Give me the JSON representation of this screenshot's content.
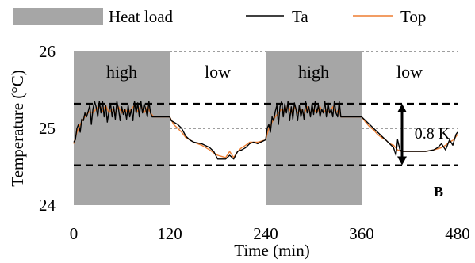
{
  "chart_data": {
    "type": "line",
    "panel_label": "B",
    "xlabel": "Time (min)",
    "ylabel": "Temperature (°C)",
    "xlim": [
      0,
      480
    ],
    "ylim": [
      24,
      26
    ],
    "x_ticks": [
      "0",
      "120",
      "240",
      "360",
      "480"
    ],
    "y_ticks": [
      "24",
      "25",
      "26"
    ],
    "legend": {
      "placement": "top",
      "entries": [
        {
          "label": "Heat load",
          "kind": "patch",
          "color": "#a6a6a6"
        },
        {
          "label": "Ta",
          "kind": "line",
          "color": "#000000"
        },
        {
          "label": "Top",
          "kind": "line",
          "color": "#ed7d31"
        }
      ]
    },
    "zones": [
      {
        "label": "high",
        "x_start": 0,
        "x_end": 120,
        "shaded": true
      },
      {
        "label": "low",
        "x_start": 120,
        "x_end": 240,
        "shaded": false
      },
      {
        "label": "high",
        "x_start": 240,
        "x_end": 360,
        "shaded": true
      },
      {
        "label": "low",
        "x_start": 360,
        "x_end": 480,
        "shaded": false
      }
    ],
    "reference_lines": [
      {
        "y": 25.32,
        "style": "dashed"
      },
      {
        "y": 24.52,
        "style": "dashed"
      }
    ],
    "range_annotation": {
      "label": "0.8 K",
      "x": 410,
      "y_low": 24.52,
      "y_high": 25.32
    },
    "series": [
      {
        "name": "Ta",
        "color": "#000000",
        "points": [
          [
            0,
            24.82
          ],
          [
            2,
            24.85
          ],
          [
            4,
            25.0
          ],
          [
            6,
            25.05
          ],
          [
            8,
            24.95
          ],
          [
            10,
            25.12
          ],
          [
            12,
            25.1
          ],
          [
            14,
            25.2
          ],
          [
            16,
            25.15
          ],
          [
            18,
            25.22
          ],
          [
            20,
            25.3
          ],
          [
            22,
            25.05
          ],
          [
            24,
            25.25
          ],
          [
            26,
            25.35
          ],
          [
            28,
            25.28
          ],
          [
            30,
            25.15
          ],
          [
            32,
            25.35
          ],
          [
            34,
            25.2
          ],
          [
            36,
            25.35
          ],
          [
            38,
            25.15
          ],
          [
            40,
            25.3
          ],
          [
            42,
            25.08
          ],
          [
            44,
            25.22
          ],
          [
            46,
            25.32
          ],
          [
            48,
            25.15
          ],
          [
            50,
            25.28
          ],
          [
            52,
            25.12
          ],
          [
            54,
            25.35
          ],
          [
            56,
            25.25
          ],
          [
            58,
            25.1
          ],
          [
            60,
            25.28
          ],
          [
            62,
            25.18
          ],
          [
            64,
            25.25
          ],
          [
            66,
            25.12
          ],
          [
            68,
            25.3
          ],
          [
            70,
            25.15
          ],
          [
            72,
            25.25
          ],
          [
            74,
            25.1
          ],
          [
            76,
            25.35
          ],
          [
            78,
            25.2
          ],
          [
            80,
            25.33
          ],
          [
            82,
            25.15
          ],
          [
            84,
            25.35
          ],
          [
            86,
            25.2
          ],
          [
            88,
            25.32
          ],
          [
            90,
            25.25
          ],
          [
            92,
            25.15
          ],
          [
            94,
            25.35
          ],
          [
            96,
            25.2
          ],
          [
            98,
            25.15
          ],
          [
            100,
            25.15
          ],
          [
            120,
            25.15
          ],
          [
            122,
            25.1
          ],
          [
            130,
            25.05
          ],
          [
            135,
            25.0
          ],
          [
            140,
            24.9
          ],
          [
            145,
            24.85
          ],
          [
            150,
            24.82
          ],
          [
            160,
            24.8
          ],
          [
            170,
            24.75
          ],
          [
            175,
            24.7
          ],
          [
            180,
            24.6
          ],
          [
            190,
            24.6
          ],
          [
            195,
            24.65
          ],
          [
            200,
            24.6
          ],
          [
            205,
            24.7
          ],
          [
            210,
            24.72
          ],
          [
            215,
            24.75
          ],
          [
            220,
            24.8
          ],
          [
            225,
            24.82
          ],
          [
            230,
            24.8
          ],
          [
            240,
            24.85
          ],
          [
            242,
            25.0
          ],
          [
            244,
            25.05
          ],
          [
            246,
            24.95
          ],
          [
            248,
            25.15
          ],
          [
            250,
            25.1
          ],
          [
            252,
            25.22
          ],
          [
            254,
            25.3
          ],
          [
            256,
            25.05
          ],
          [
            258,
            25.28
          ],
          [
            260,
            25.35
          ],
          [
            262,
            25.15
          ],
          [
            264,
            25.32
          ],
          [
            266,
            25.2
          ],
          [
            268,
            25.35
          ],
          [
            270,
            25.1
          ],
          [
            272,
            25.28
          ],
          [
            274,
            25.12
          ],
          [
            276,
            25.33
          ],
          [
            278,
            25.25
          ],
          [
            280,
            25.1
          ],
          [
            282,
            25.3
          ],
          [
            284,
            25.15
          ],
          [
            286,
            25.25
          ],
          [
            288,
            25.12
          ],
          [
            290,
            25.35
          ],
          [
            292,
            25.2
          ],
          [
            294,
            25.28
          ],
          [
            296,
            25.15
          ],
          [
            298,
            25.32
          ],
          [
            300,
            25.18
          ],
          [
            302,
            25.35
          ],
          [
            304,
            25.2
          ],
          [
            306,
            25.3
          ],
          [
            308,
            25.15
          ],
          [
            310,
            25.25
          ],
          [
            312,
            25.2
          ],
          [
            314,
            25.35
          ],
          [
            316,
            25.15
          ],
          [
            318,
            25.33
          ],
          [
            320,
            25.2
          ],
          [
            322,
            25.25
          ],
          [
            324,
            25.15
          ],
          [
            326,
            25.35
          ],
          [
            328,
            25.2
          ],
          [
            330,
            25.15
          ],
          [
            332,
            25.35
          ],
          [
            334,
            25.15
          ],
          [
            360,
            25.15
          ],
          [
            365,
            25.1
          ],
          [
            370,
            25.05
          ],
          [
            375,
            25.0
          ],
          [
            380,
            24.95
          ],
          [
            385,
            24.9
          ],
          [
            390,
            24.85
          ],
          [
            395,
            24.8
          ],
          [
            400,
            24.75
          ],
          [
            403,
            24.65
          ],
          [
            405,
            24.85
          ],
          [
            408,
            24.72
          ],
          [
            410,
            24.7
          ],
          [
            420,
            24.7
          ],
          [
            440,
            24.7
          ],
          [
            450,
            24.72
          ],
          [
            455,
            24.75
          ],
          [
            460,
            24.8
          ],
          [
            465,
            24.72
          ],
          [
            470,
            24.85
          ],
          [
            474,
            24.78
          ],
          [
            478,
            24.92
          ],
          [
            480,
            24.95
          ]
        ]
      },
      {
        "name": "Top",
        "color": "#ed7d31",
        "points": [
          [
            0,
            24.8
          ],
          [
            4,
            24.95
          ],
          [
            8,
            25.05
          ],
          [
            12,
            25.12
          ],
          [
            16,
            25.18
          ],
          [
            20,
            25.22
          ],
          [
            24,
            25.2
          ],
          [
            28,
            25.25
          ],
          [
            32,
            25.3
          ],
          [
            36,
            25.22
          ],
          [
            40,
            25.3
          ],
          [
            44,
            25.2
          ],
          [
            48,
            25.25
          ],
          [
            52,
            25.2
          ],
          [
            56,
            25.28
          ],
          [
            60,
            25.2
          ],
          [
            64,
            25.25
          ],
          [
            68,
            25.2
          ],
          [
            72,
            25.25
          ],
          [
            76,
            25.3
          ],
          [
            80,
            25.22
          ],
          [
            84,
            25.3
          ],
          [
            88,
            25.2
          ],
          [
            92,
            25.28
          ],
          [
            96,
            25.2
          ],
          [
            100,
            25.15
          ],
          [
            120,
            25.15
          ],
          [
            125,
            25.05
          ],
          [
            130,
            25.0
          ],
          [
            135,
            24.95
          ],
          [
            140,
            24.88
          ],
          [
            145,
            24.85
          ],
          [
            150,
            24.82
          ],
          [
            160,
            24.78
          ],
          [
            170,
            24.72
          ],
          [
            175,
            24.68
          ],
          [
            180,
            24.65
          ],
          [
            190,
            24.62
          ],
          [
            195,
            24.7
          ],
          [
            200,
            24.62
          ],
          [
            205,
            24.7
          ],
          [
            210,
            24.75
          ],
          [
            215,
            24.78
          ],
          [
            220,
            24.82
          ],
          [
            230,
            24.82
          ],
          [
            240,
            24.85
          ],
          [
            244,
            25.0
          ],
          [
            248,
            25.08
          ],
          [
            252,
            25.15
          ],
          [
            256,
            25.2
          ],
          [
            260,
            25.25
          ],
          [
            264,
            25.22
          ],
          [
            268,
            25.3
          ],
          [
            272,
            25.2
          ],
          [
            276,
            25.28
          ],
          [
            280,
            25.2
          ],
          [
            284,
            25.25
          ],
          [
            288,
            25.18
          ],
          [
            292,
            25.28
          ],
          [
            296,
            25.2
          ],
          [
            300,
            25.25
          ],
          [
            304,
            25.2
          ],
          [
            308,
            25.28
          ],
          [
            312,
            25.2
          ],
          [
            316,
            25.25
          ],
          [
            320,
            25.2
          ],
          [
            324,
            25.28
          ],
          [
            328,
            25.2
          ],
          [
            332,
            25.25
          ],
          [
            334,
            25.15
          ],
          [
            360,
            25.15
          ],
          [
            365,
            25.08
          ],
          [
            370,
            25.02
          ],
          [
            375,
            24.98
          ],
          [
            380,
            24.92
          ],
          [
            385,
            24.88
          ],
          [
            390,
            24.85
          ],
          [
            395,
            24.8
          ],
          [
            400,
            24.78
          ],
          [
            405,
            24.72
          ],
          [
            410,
            24.7
          ],
          [
            420,
            24.7
          ],
          [
            440,
            24.7
          ],
          [
            450,
            24.72
          ],
          [
            460,
            24.75
          ],
          [
            465,
            24.78
          ],
          [
            470,
            24.82
          ],
          [
            475,
            24.85
          ],
          [
            480,
            24.92
          ]
        ]
      }
    ]
  }
}
